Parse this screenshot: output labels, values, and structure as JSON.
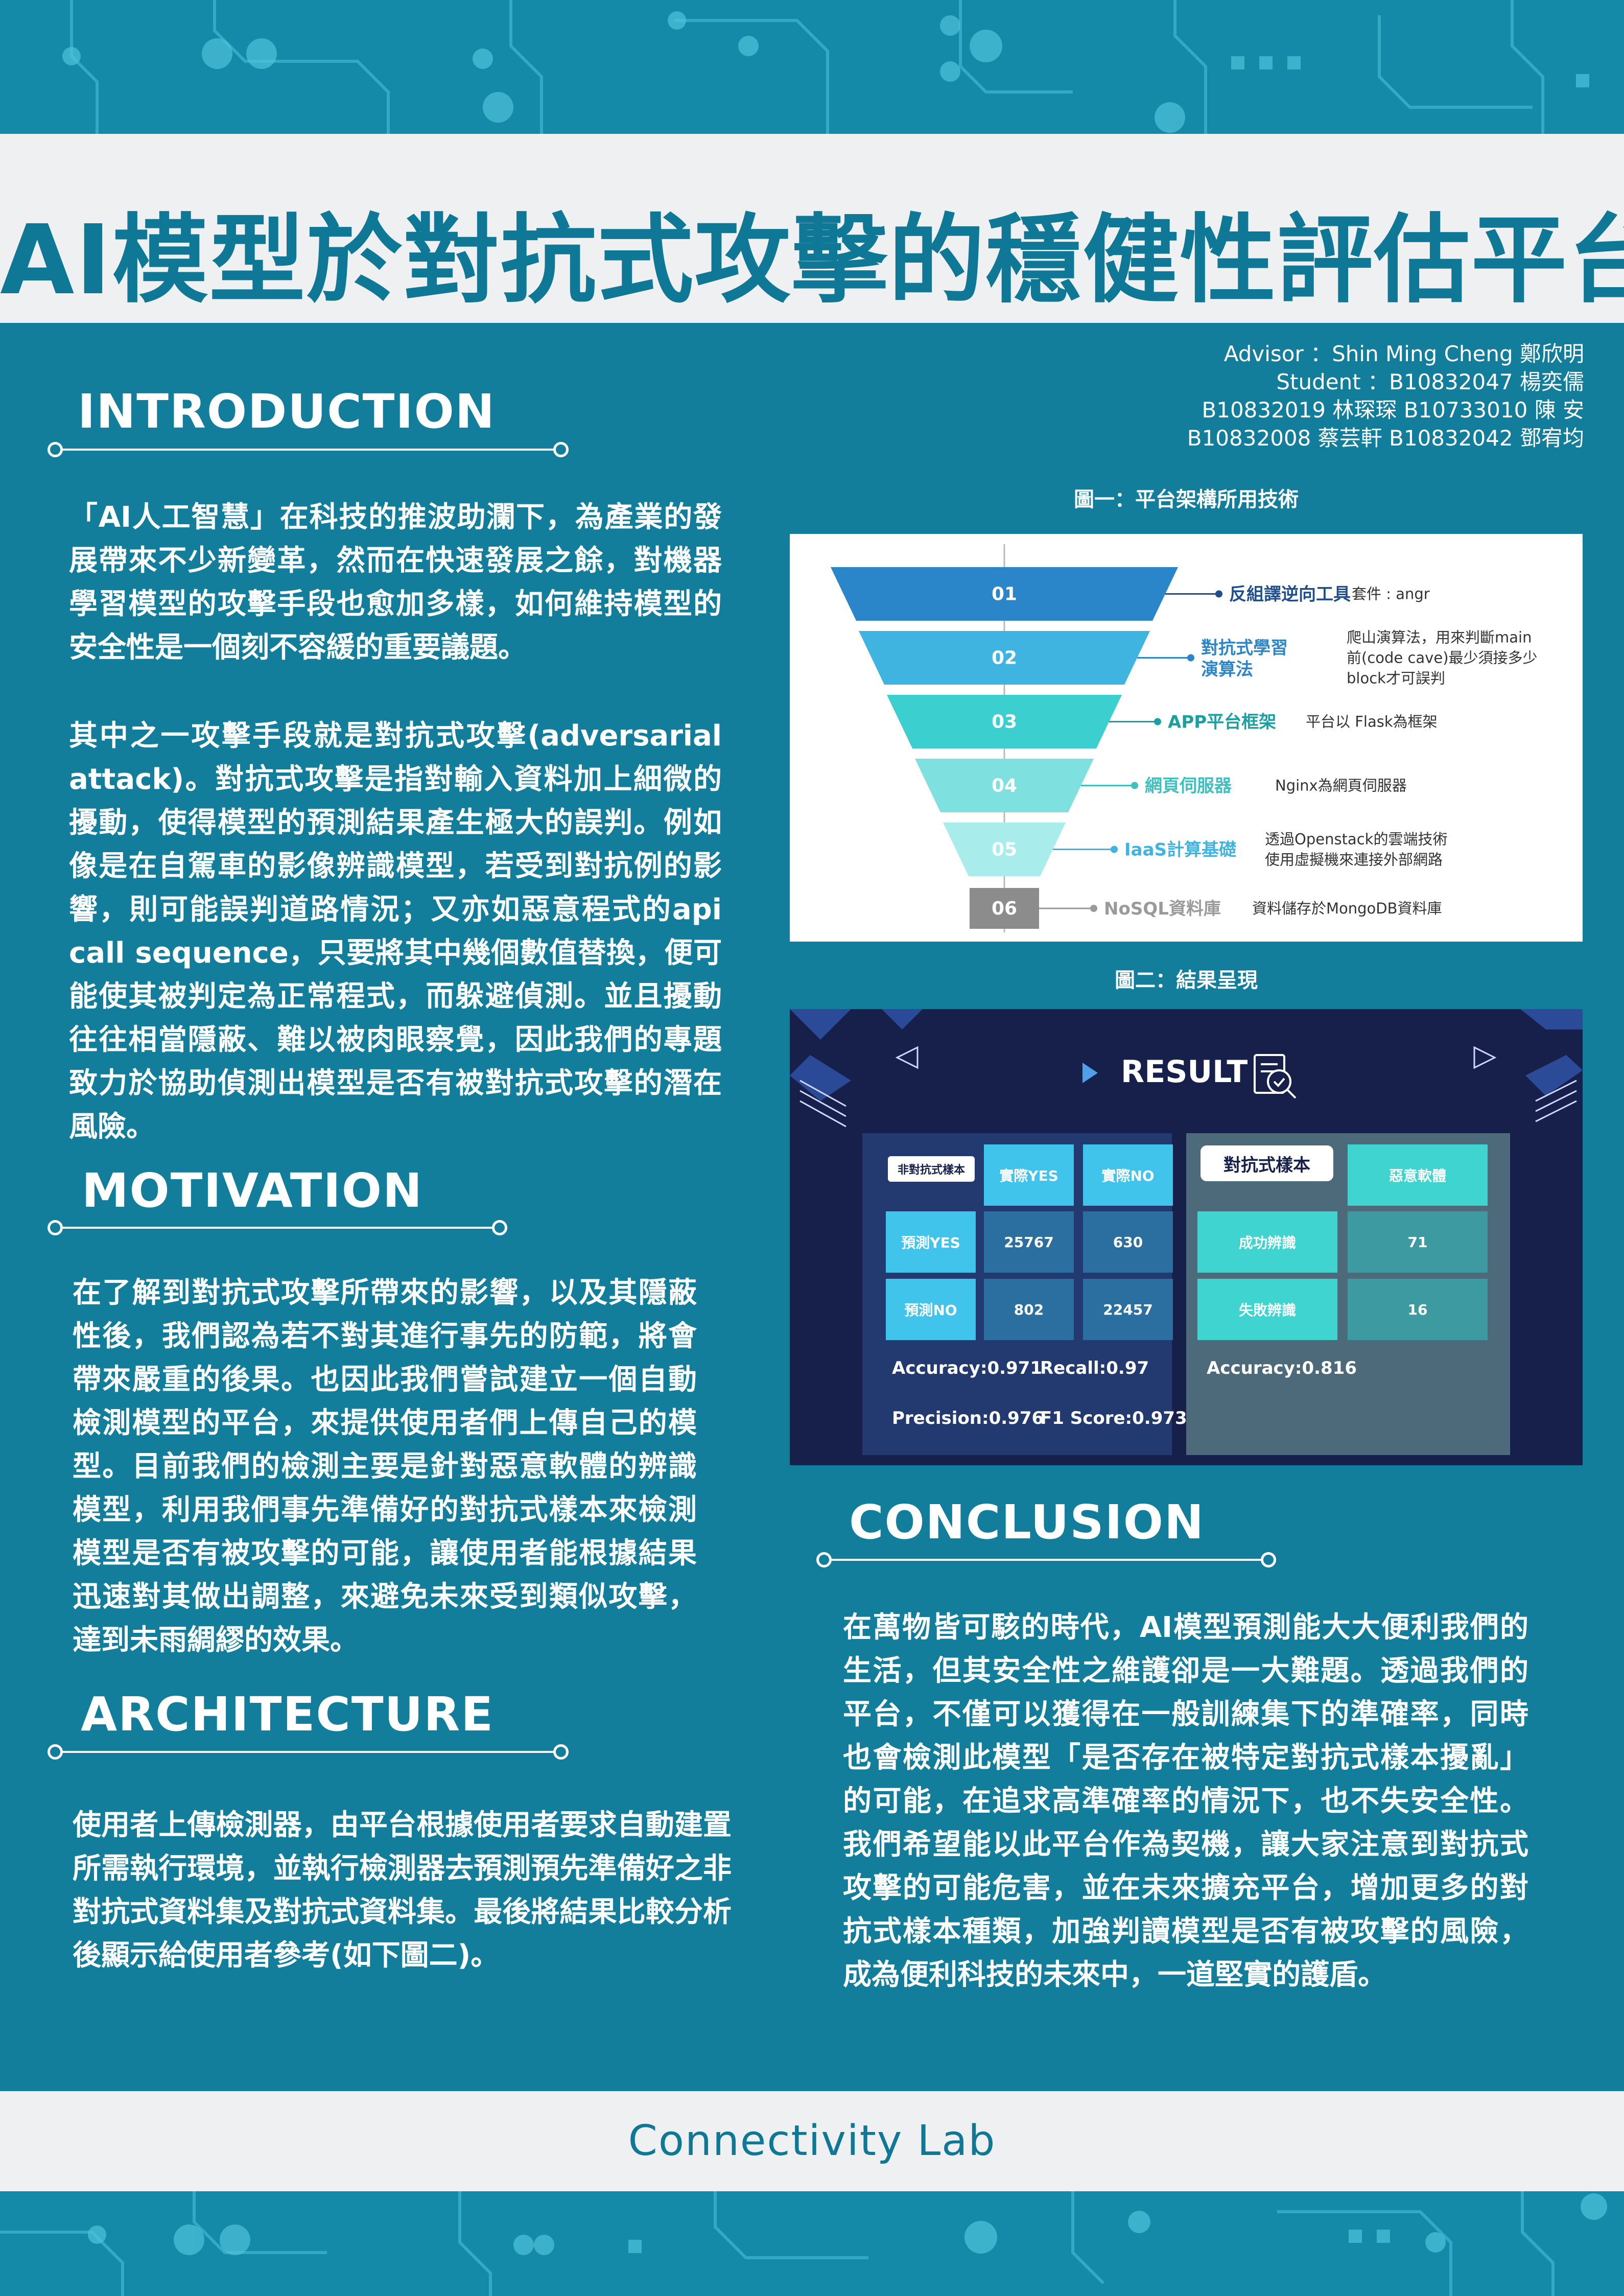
{
  "title": "AI模型於對抗式攻擊的穩健性評估平台",
  "credits": {
    "advisor": "Advisor ：Shin Ming Cheng 鄭欣明",
    "student": "Student ：B10832047 楊奕儒",
    "members_1": "B10832019 林琛琛 B10733010 陳 安",
    "members_2": "B10832008 蔡芸軒 B10832042 鄧宥均"
  },
  "introduction": {
    "heading": "INTRODUCTION",
    "para1": "「AI人工智慧」在科技的推波助瀾下，為產業的發展帶來不少新變革，然而在快速發展之餘，對機器學習模型的攻擊手段也愈加多樣，如何維持模型的安全性是一個刻不容緩的重要議題。",
    "para2": "其中之一攻擊手段就是對抗式攻擊(adversarial attack)。對抗式攻擊是指對輸入資料加上細微的擾動，使得模型的預測結果產生極大的誤判。例如像是在自駕車的影像辨識模型，若受到對抗例的影響，則可能誤判道路情況；又亦如惡意程式的api call sequence，只要將其中幾個數值替換，便可能使其被判定為正常程式，而躲避偵測。並且擾動往往相當隱蔽、難以被肉眼察覺，因此我們的專題致力於協助偵測出模型是否有被對抗式攻擊的潛在風險。"
  },
  "motivation": {
    "heading": "MOTIVATION",
    "para": "在了解到對抗式攻擊所帶來的影響，以及其隱蔽性後，我們認為若不對其進行事先的防範，將會帶來嚴重的後果。也因此我們嘗試建立一個自動檢測模型的平台，來提供使用者們上傳自己的模型。目前我們的檢測主要是針對惡意軟體的辨識模型，利用我們事先準備好的對抗式樣本來檢測模型是否有被攻擊的可能，讓使用者能根據結果迅速對其做出調整，來避免未來受到類似攻擊，達到未雨綢繆的效果。"
  },
  "architecture": {
    "heading": "ARCHITECTURE",
    "para": "使用者上傳檢測器，由平台根據使用者要求自動建置所需執行環境，並執行檢測器去預測預先準備好之非對抗式資料集及對抗式資料集。最後將結果比較分析後顯示給使用者參考(如下圖二)。"
  },
  "conclusion": {
    "heading": "CONCLUSION",
    "para": "在萬物皆可駭的時代，AI模型預測能大大便利我們的生活，但其安全性之維護卻是一大難題。透過我們的平台，不僅可以獲得在一般訓練集下的準確率，同時也會檢測此模型「是否存在被特定對抗式樣本擾亂」的可能，在追求高準確率的情況下，也不失安全性。我們希望能以此平台作為契機，讓大家注意到對抗式攻擊的可能危害，並在未來擴充平台，增加更多的對抗式樣本種類，加強判讀模型是否有被攻擊的風險，成為便利科技的未來中，一道堅實的護盾。"
  },
  "figure1": {
    "caption": "圖一：平台架構所用技術",
    "layers": [
      {
        "num": "01",
        "label": "反組譯逆向工具",
        "desc": [
          "套件 : angr"
        ],
        "color": "#2a86c9",
        "label_color": "#1f4e8c"
      },
      {
        "num": "02",
        "label": "對抗式學習演算法",
        "label_lines": [
          "對抗式學習",
          "演算法"
        ],
        "desc": [
          "爬山演算法，用來判斷main",
          "前(code cave)最少須接多少",
          "block才可誤判"
        ],
        "color": "#3fb4e0",
        "label_color": "#2a86c9"
      },
      {
        "num": "03",
        "label": "APP平台框架",
        "desc": [
          "平台以 Flask為框架"
        ],
        "color": "#3ccfcf",
        "label_color": "#1aa0a0"
      },
      {
        "num": "04",
        "label": "網頁伺服器",
        "desc": [
          "Nginx為網頁伺服器"
        ],
        "color": "#7fe0e0",
        "label_color": "#3cc0c0"
      },
      {
        "num": "05",
        "label": "IaaS計算基礎",
        "desc": [
          "透過Openstack的雲端技術",
          "使用虛擬機來連接外部網路"
        ],
        "color": "#a8ecec",
        "label_color": "#3fb4e0"
      },
      {
        "num": "06",
        "label": "NoSQL資料庫",
        "desc": [
          "資料儲存於MongoDB資料庫"
        ],
        "color": "#8c8c8c",
        "label_color": "#9a9a9a"
      }
    ]
  },
  "figure2": {
    "caption": "圖二：結果呈現",
    "result_title": "RESULT",
    "non_adv": {
      "tag": "非對抗式樣本",
      "col1": "實際YES",
      "col2": "實際NO",
      "row1": "預測YES",
      "row2": "預測NO",
      "values": [
        [
          "25767",
          "630"
        ],
        [
          "802",
          "22457"
        ]
      ],
      "accuracy": "Accuracy:0.971",
      "recall": "Recall:0.97",
      "precision": "Precision:0.976",
      "f1": "F1  Score:0.973"
    },
    "adv": {
      "tag": "對抗式樣本",
      "col": "惡意軟體",
      "row1": "成功辨識",
      "row2": "失敗辨識",
      "values": [
        "71",
        "16"
      ],
      "accuracy": "Accuracy:0.816"
    }
  },
  "footer": "Connectivity Lab"
}
